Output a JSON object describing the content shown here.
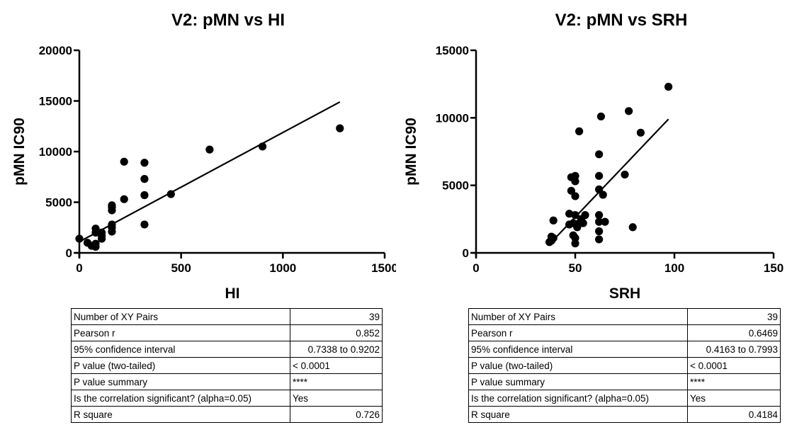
{
  "chart_data": [
    {
      "type": "scatter",
      "title": "V2: pMN vs HI",
      "xlabel": "HI",
      "ylabel": "pMN IC90",
      "xlim": [
        0,
        1500
      ],
      "ylim": [
        0,
        20000
      ],
      "xticks": [
        0,
        500,
        1000,
        1500
      ],
      "yticks": [
        0,
        5000,
        10000,
        15000,
        20000
      ],
      "grid": false,
      "points": [
        [
          0,
          1400
        ],
        [
          40,
          1000
        ],
        [
          60,
          700
        ],
        [
          80,
          900
        ],
        [
          80,
          600
        ],
        [
          80,
          2000
        ],
        [
          80,
          2400
        ],
        [
          110,
          1700
        ],
        [
          110,
          1400
        ],
        [
          110,
          2000
        ],
        [
          160,
          2100
        ],
        [
          160,
          2500
        ],
        [
          160,
          2800
        ],
        [
          160,
          4200
        ],
        [
          160,
          4500
        ],
        [
          160,
          4700
        ],
        [
          220,
          5300
        ],
        [
          220,
          9000
        ],
        [
          320,
          2800
        ],
        [
          320,
          5700
        ],
        [
          320,
          7300
        ],
        [
          320,
          8900
        ],
        [
          450,
          5800
        ],
        [
          640,
          10200
        ],
        [
          900,
          10500
        ],
        [
          1280,
          12300
        ]
      ],
      "fit_line": {
        "x": [
          0,
          1280
        ],
        "y": [
          1100,
          14900
        ]
      }
    },
    {
      "type": "scatter",
      "title": "V2: pMN vs SRH",
      "xlabel": "SRH",
      "ylabel": "pMN IC90",
      "xlim": [
        0,
        150
      ],
      "ylim": [
        0,
        15000
      ],
      "xticks": [
        0,
        50,
        100,
        150
      ],
      "yticks": [
        0,
        5000,
        10000,
        15000
      ],
      "grid": false,
      "points": [
        [
          37,
          800
        ],
        [
          38,
          900
        ],
        [
          38,
          1200
        ],
        [
          39,
          2400
        ],
        [
          39,
          1100
        ],
        [
          47,
          2100
        ],
        [
          47,
          2900
        ],
        [
          48,
          4600
        ],
        [
          48,
          5600
        ],
        [
          49,
          1300
        ],
        [
          49,
          2200
        ],
        [
          50,
          5700
        ],
        [
          50,
          5300
        ],
        [
          50,
          4200
        ],
        [
          50,
          700
        ],
        [
          50,
          1100
        ],
        [
          50,
          2800
        ],
        [
          51,
          2000
        ],
        [
          51,
          1900
        ],
        [
          52,
          9000
        ],
        [
          52,
          2200
        ],
        [
          53,
          2500
        ],
        [
          54,
          2200
        ],
        [
          55,
          2800
        ],
        [
          62,
          7300
        ],
        [
          62,
          5700
        ],
        [
          62,
          4700
        ],
        [
          62,
          2800
        ],
        [
          62,
          2300
        ],
        [
          62,
          1600
        ],
        [
          62,
          1000
        ],
        [
          63,
          10100
        ],
        [
          64,
          4300
        ],
        [
          65,
          2300
        ],
        [
          75,
          5800
        ],
        [
          77,
          10500
        ],
        [
          79,
          1900
        ],
        [
          83,
          8900
        ],
        [
          97,
          12300
        ]
      ],
      "fit_line": {
        "x": [
          38,
          97
        ],
        "y": [
          800,
          9900
        ]
      }
    }
  ],
  "tables": [
    {
      "rows": [
        {
          "label": "Number of XY Pairs",
          "value": "39"
        },
        {
          "label": "Pearson r",
          "value": "0.852"
        },
        {
          "label": "95% confidence interval",
          "value": "0.7338 to 0.9202"
        },
        {
          "label": "P value (two-tailed)",
          "value": "< 0.0001"
        },
        {
          "label": "P value summary",
          "value": "****"
        },
        {
          "label": "Is the correlation significant? (alpha=0.05)",
          "value": "Yes"
        },
        {
          "label": "R square",
          "value": "0.726"
        }
      ]
    },
    {
      "rows": [
        {
          "label": "Number of XY Pairs",
          "value": "39"
        },
        {
          "label": "Pearson r",
          "value": "0.6469"
        },
        {
          "label": "95% confidence interval",
          "value": "0.4163 to 0.7993"
        },
        {
          "label": "P value (two-tailed)",
          "value": "< 0.0001"
        },
        {
          "label": "P value summary",
          "value": "****"
        },
        {
          "label": "Is the correlation significant? (alpha=0.05)",
          "value": "Yes"
        },
        {
          "label": "R square",
          "value": "0.4184"
        }
      ]
    }
  ]
}
